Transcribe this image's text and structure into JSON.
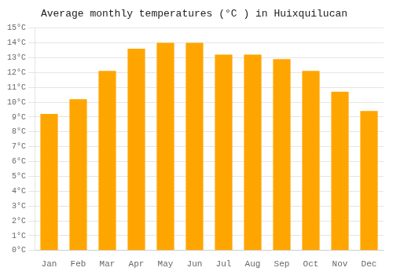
{
  "chart_data": {
    "type": "bar",
    "title": "Average monthly temperatures (°C ) in Huixquilucan",
    "categories": [
      "Jan",
      "Feb",
      "Mar",
      "Apr",
      "May",
      "Jun",
      "Jul",
      "Aug",
      "Sep",
      "Oct",
      "Nov",
      "Dec"
    ],
    "values": [
      9.2,
      10.2,
      12.1,
      13.6,
      14.0,
      14.0,
      13.2,
      13.2,
      12.9,
      12.1,
      10.7,
      9.4
    ],
    "color": "#FFA500",
    "ylim": [
      0,
      15
    ],
    "yticks": [
      {
        "value": 0,
        "label": "0°C"
      },
      {
        "value": 1,
        "label": "1°C"
      },
      {
        "value": 2,
        "label": "2°C"
      },
      {
        "value": 3,
        "label": "3°C"
      },
      {
        "value": 4,
        "label": "4°C"
      },
      {
        "value": 5,
        "label": "5°C"
      },
      {
        "value": 6,
        "label": "6°C"
      },
      {
        "value": 7,
        "label": "7°C"
      },
      {
        "value": 8,
        "label": "8°C"
      },
      {
        "value": 9,
        "label": "9°C"
      },
      {
        "value": 10,
        "label": "10°C"
      },
      {
        "value": 11,
        "label": "11°C"
      },
      {
        "value": 12,
        "label": "12°C"
      },
      {
        "value": 13,
        "label": "13°C"
      },
      {
        "value": 14,
        "label": "14°C"
      },
      {
        "value": 15,
        "label": "15°C"
      }
    ],
    "grid": true
  }
}
